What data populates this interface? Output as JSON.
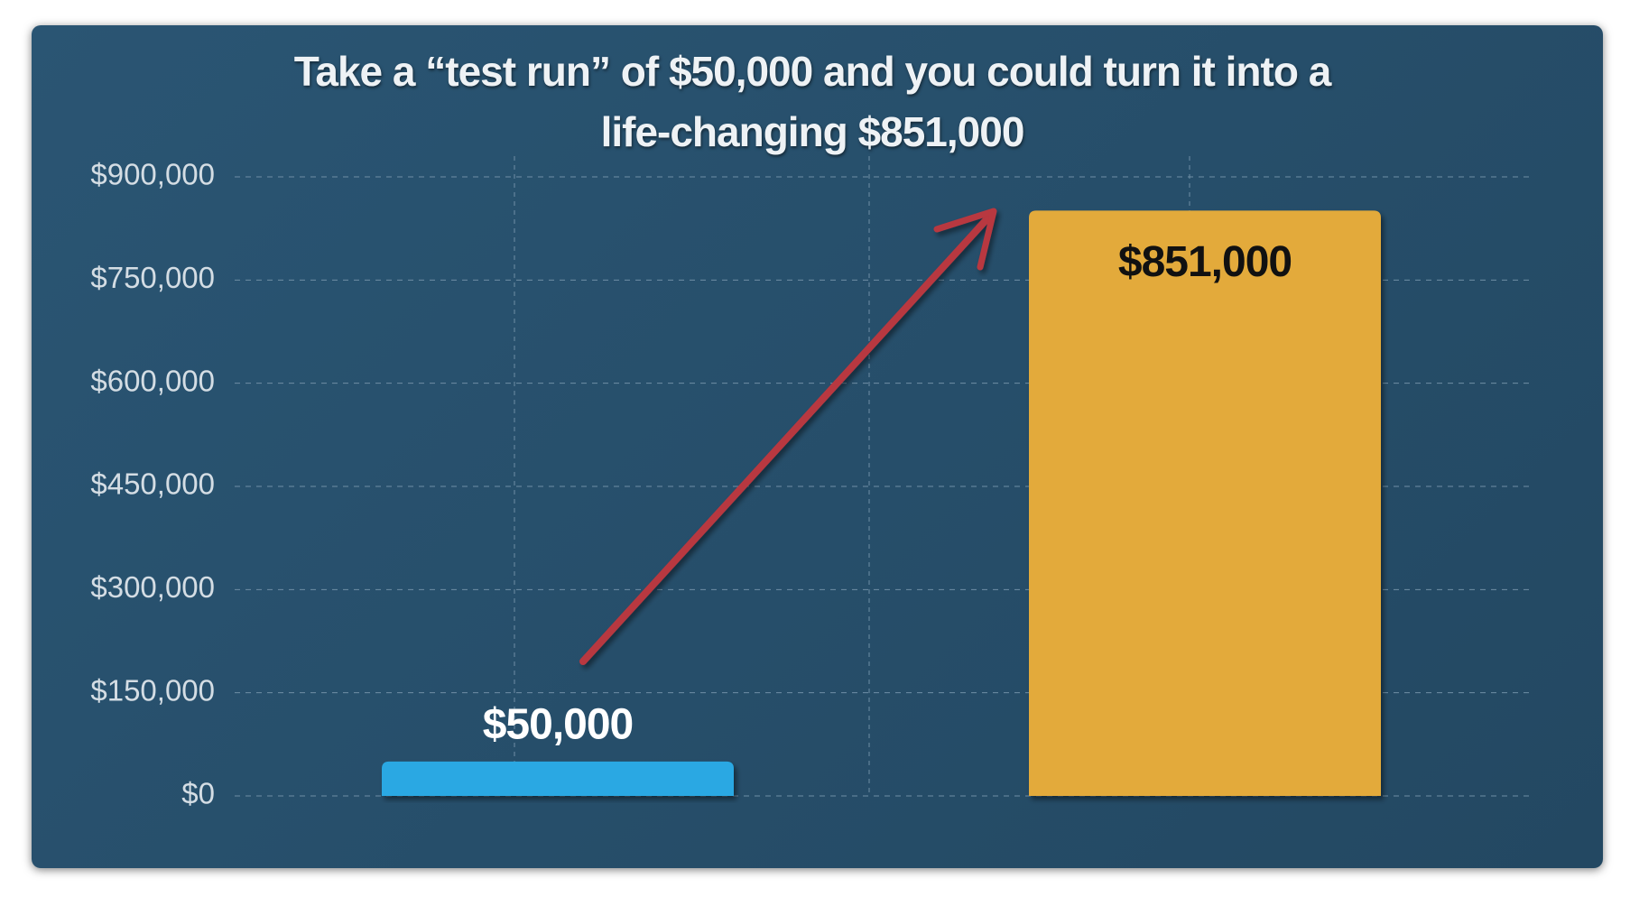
{
  "chart_data": {
    "type": "bar",
    "title": "Take a “test run” of $50,000 and you could turn it into a life-changing $851,000",
    "categories": [
      null,
      null
    ],
    "values": [
      50000,
      851000
    ],
    "value_labels": [
      "$50,000",
      "$851,000"
    ],
    "colors": [
      "#29a8e3",
      "#e3aa3a"
    ],
    "ylim": [
      0,
      900000
    ],
    "yticks": [
      {
        "value": 0,
        "label": "$0"
      },
      {
        "value": 150000,
        "label": "$150,000"
      },
      {
        "value": 300000,
        "label": "$300,000"
      },
      {
        "value": 450000,
        "label": "$450,000"
      },
      {
        "value": 600000,
        "label": "$600,000"
      },
      {
        "value": 750000,
        "label": "$750,000"
      },
      {
        "value": 900000,
        "label": "$900,000"
      }
    ],
    "grid": true
  }
}
